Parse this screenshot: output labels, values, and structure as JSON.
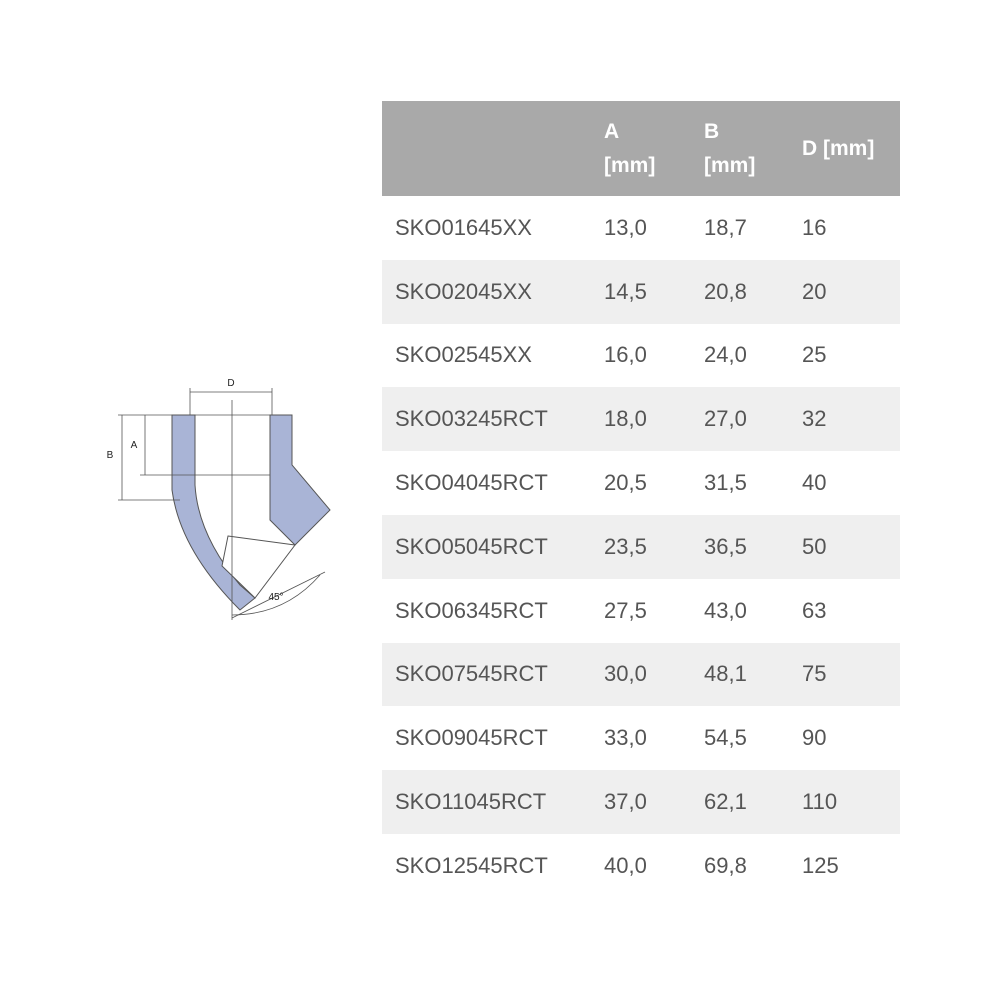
{
  "diagram": {
    "labels": [
      "D",
      "A",
      "B",
      "45°"
    ]
  },
  "table": {
    "header": [
      "A [mm]",
      "B [mm]",
      "D [mm]"
    ],
    "rows": [
      [
        "SKO01645XX",
        "13,0",
        "18,7",
        "16"
      ],
      [
        "SKO02045XX",
        "14,5",
        "20,8",
        "20"
      ],
      [
        "SKO02545XX",
        "16,0",
        "24,0",
        "25"
      ],
      [
        "SKO03245RCT",
        "18,0",
        "27,0",
        "32"
      ],
      [
        "SKO04045RCT",
        "20,5",
        "31,5",
        "40"
      ],
      [
        "SKO05045RCT",
        "23,5",
        "36,5",
        "50"
      ],
      [
        "SKO06345RCT",
        "27,5",
        "43,0",
        "63"
      ],
      [
        "SKO07545RCT",
        "30,0",
        "48,1",
        "75"
      ],
      [
        "SKO09045RCT",
        "33,0",
        "54,5",
        "90"
      ],
      [
        "SKO11045RCT",
        "37,0",
        "62,1",
        "110"
      ],
      [
        "SKO12545RCT",
        "40,0",
        "69,8",
        "125"
      ]
    ]
  }
}
